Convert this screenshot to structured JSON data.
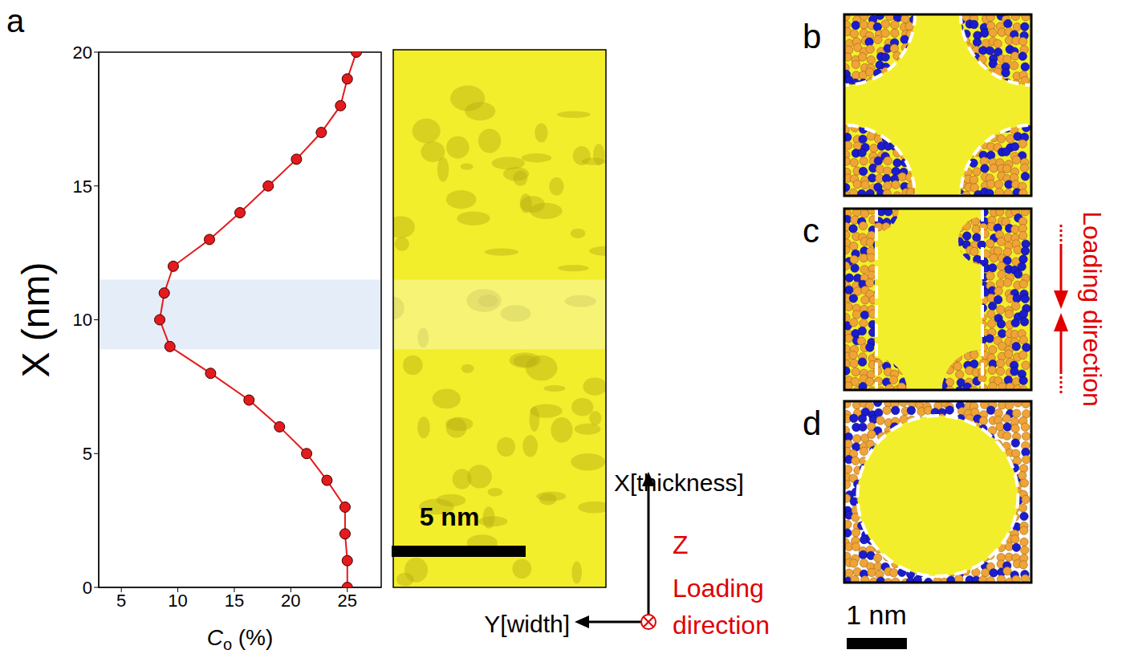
{
  "chart_data": {
    "type": "line",
    "panel": "a",
    "x_label": "Co (%)",
    "y_label": "X (nm)",
    "x": [
      25,
      25,
      24.8,
      24.8,
      23.2,
      21.4,
      19,
      16.3,
      12.9,
      9.3,
      8.4,
      8.8,
      9.6,
      12.8,
      15.5,
      18,
      20.5,
      22.7,
      24.4,
      25,
      25.8
    ],
    "values": [
      0,
      1,
      2,
      3,
      4,
      5,
      6,
      7,
      8,
      9,
      10,
      11,
      12,
      13,
      14,
      15,
      16,
      17,
      18,
      19,
      20
    ],
    "xlim": [
      3,
      28
    ],
    "xticks": [
      5,
      10,
      15,
      20,
      25
    ],
    "ylim": [
      0,
      20
    ],
    "yticks": [
      0,
      5,
      10,
      15,
      20
    ],
    "color": "#e41a1c",
    "marker": "circle",
    "line_style": "solid",
    "highlight_band": [
      8.9,
      11.5
    ]
  },
  "image_panel": {
    "scale_bar": "5 nm"
  },
  "axes_triad": {
    "x": "X[thickness]",
    "y": "Y[width]",
    "z": "Z",
    "z_note": "Loading direction"
  },
  "panels": {
    "labels": [
      "b",
      "c",
      "d"
    ],
    "scale_bar": "1 nm",
    "loading_label": "Loading direction"
  }
}
